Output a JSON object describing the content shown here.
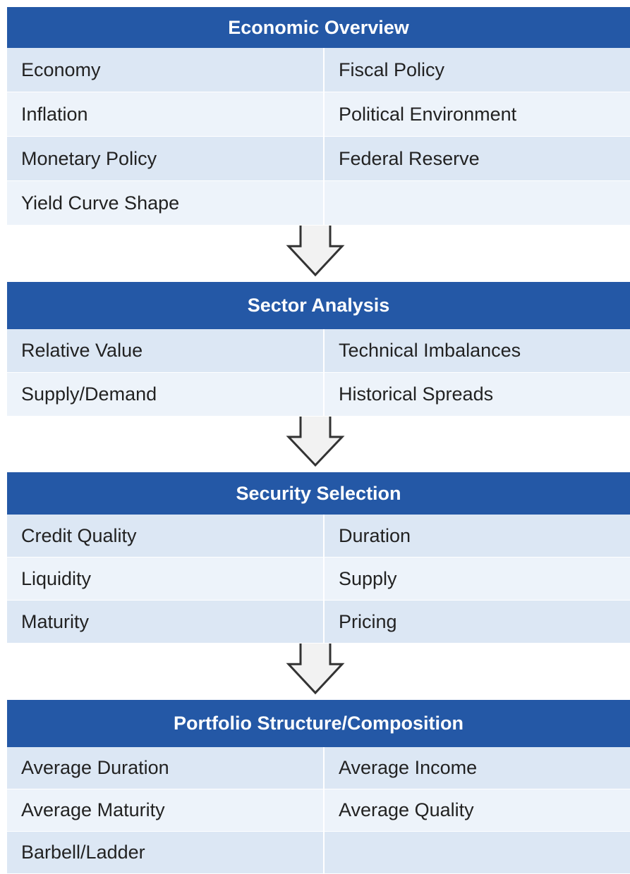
{
  "sections": [
    {
      "title": "Economic Overview",
      "rows": [
        [
          "Economy",
          "Fiscal Policy"
        ],
        [
          "Inflation",
          "Political Environment"
        ],
        [
          "Monetary Policy",
          "Federal Reserve"
        ],
        [
          "Yield Curve Shape"
        ]
      ]
    },
    {
      "title": "Sector Analysis",
      "rows": [
        [
          "Relative Value",
          "Technical Imbalances"
        ],
        [
          "Supply/Demand",
          "Historical Spreads"
        ]
      ]
    },
    {
      "title": "Security Selection",
      "rows": [
        [
          "Credit Quality",
          "Duration"
        ],
        [
          "Liquidity",
          "Supply"
        ],
        [
          "Maturity",
          "Pricing"
        ]
      ]
    },
    {
      "title": "Portfolio Structure/Composition",
      "rows": [
        [
          "Average Duration",
          "Average Income"
        ],
        [
          "Average Maturity",
          "Average Quality"
        ],
        [
          "Barbell/Ladder"
        ]
      ]
    }
  ]
}
